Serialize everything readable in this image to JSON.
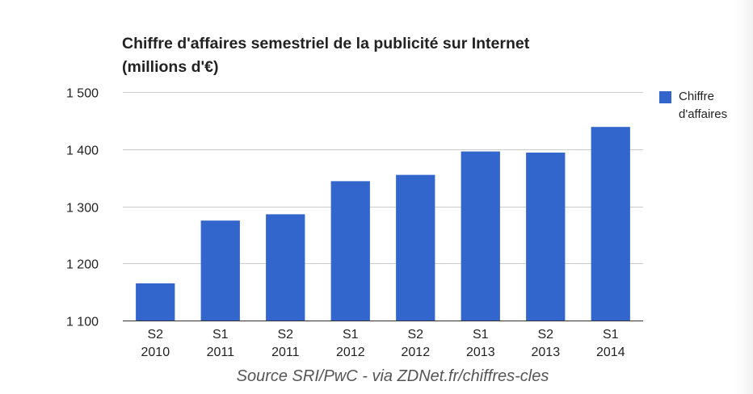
{
  "chart_data": {
    "type": "bar",
    "title": "Chiffre d'affaires semestriel de la publicité sur Internet",
    "subtitle": "(millions d'€)",
    "categories": [
      [
        "S2",
        "2010"
      ],
      [
        "S1",
        "2011"
      ],
      [
        "S2",
        "2011"
      ],
      [
        "S1",
        "2012"
      ],
      [
        "S2",
        "2012"
      ],
      [
        "S1",
        "2013"
      ],
      [
        "S2",
        "2013"
      ],
      [
        "S1",
        "2014"
      ]
    ],
    "series": [
      {
        "name": "Chiffre d'affaires",
        "color": "#3366cc",
        "values": [
          1165,
          1275,
          1286,
          1344,
          1355,
          1396,
          1394,
          1439
        ]
      }
    ],
    "ylim": [
      1100,
      1500
    ],
    "yticks": [
      1100,
      1200,
      1300,
      1400,
      1500
    ],
    "ytick_labels": [
      "1 100",
      "1 200",
      "1 300",
      "1 400",
      "1 500"
    ],
    "grid": true,
    "legend_position": "right",
    "source_note": "Source SRI/PwC - via ZDNet.fr/chiffres-cles"
  }
}
